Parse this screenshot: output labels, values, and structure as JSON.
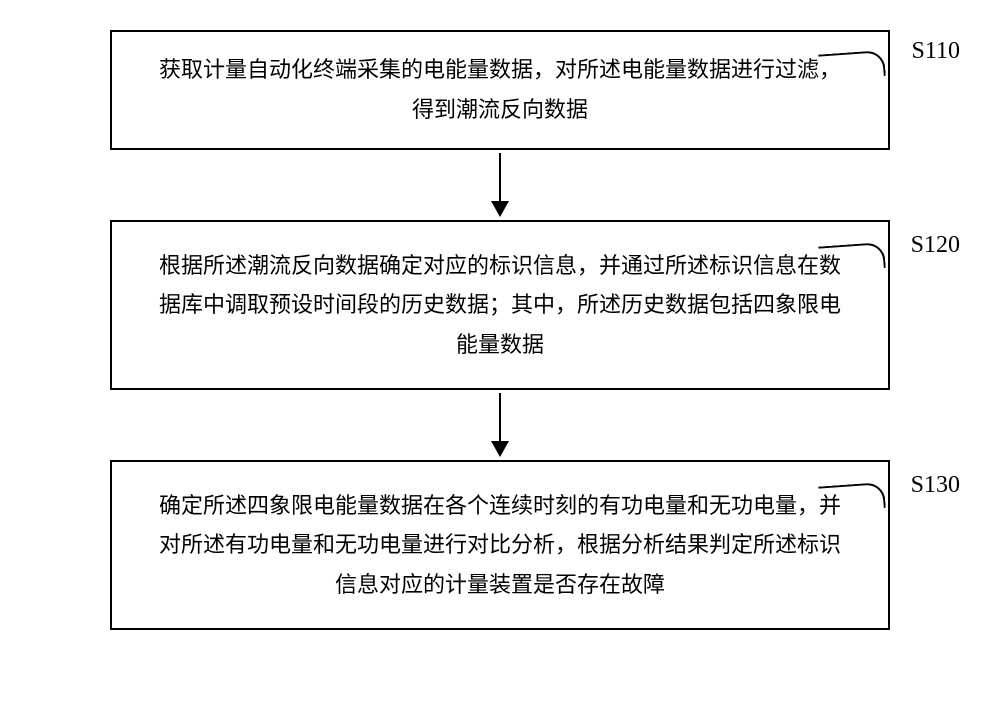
{
  "flowchart": {
    "type": "flowchart",
    "background_color": "#ffffff",
    "box_border_color": "#000000",
    "box_border_width": 2,
    "text_color": "#000000",
    "text_fontsize": 22,
    "label_fontsize": 24,
    "arrow_color": "#000000",
    "steps": [
      {
        "id": "S110",
        "text": "获取计量自动化终端采集的电能量数据，对所述电能量数据进行过滤，得到潮流反向数据",
        "label": "S110"
      },
      {
        "id": "S120",
        "text": "根据所述潮流反向数据确定对应的标识信息，并通过所述标识信息在数据库中调取预设时间段的历史数据；其中，所述历史数据包括四象限电能量数据",
        "label": "S120"
      },
      {
        "id": "S130",
        "text": "确定所述四象限电能量数据在各个连续时刻的有功电量和无功电量，并对所述有功电量和无功电量进行对比分析，根据分析结果判定所述标识信息对应的计量装置是否存在故障",
        "label": "S130"
      }
    ],
    "edges": [
      {
        "from": "S110",
        "to": "S120"
      },
      {
        "from": "S120",
        "to": "S130"
      }
    ]
  }
}
